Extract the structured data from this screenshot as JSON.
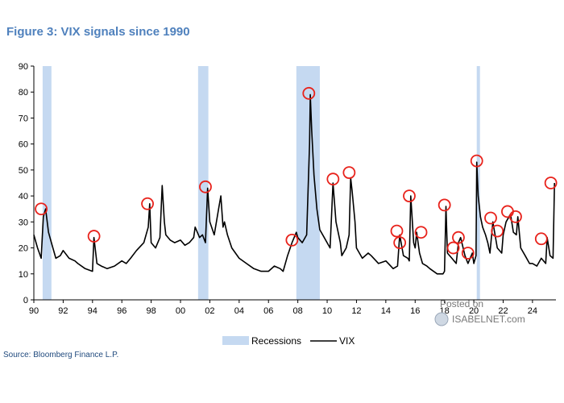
{
  "figure_title": "Figure 3: VIX signals since 1990",
  "source": "Source: Bloomberg Finance L.P.",
  "watermark": {
    "line1": "Posted on",
    "line2": "ISABELNET.com"
  },
  "colors": {
    "title": "#4f81bd",
    "recession": "#c5d9f1",
    "vix_line": "#000000",
    "signal_circle": "#e8221b"
  },
  "chart_data": {
    "type": "line",
    "title": "Figure 3: VIX signals since 1990",
    "xlabel": "",
    "ylabel": "",
    "xlim": [
      1990,
      2025.6
    ],
    "ylim": [
      0,
      90
    ],
    "y_ticks": [
      0,
      10,
      20,
      30,
      40,
      50,
      60,
      70,
      80,
      90
    ],
    "x_ticks": [
      {
        "value": 1990,
        "label": "90"
      },
      {
        "value": 1992,
        "label": "92"
      },
      {
        "value": 1994,
        "label": "94"
      },
      {
        "value": 1996,
        "label": "96"
      },
      {
        "value": 1998,
        "label": "98"
      },
      {
        "value": 2000,
        "label": "00"
      },
      {
        "value": 2002,
        "label": "02"
      },
      {
        "value": 2004,
        "label": "04"
      },
      {
        "value": 2006,
        "label": "06"
      },
      {
        "value": 2008,
        "label": "08"
      },
      {
        "value": 2010,
        "label": "10"
      },
      {
        "value": 2012,
        "label": "12"
      },
      {
        "value": 2014,
        "label": "14"
      },
      {
        "value": 2016,
        "label": "16"
      },
      {
        "value": 2018,
        "label": "18"
      },
      {
        "value": 2020,
        "label": "20"
      },
      {
        "value": 2022,
        "label": "22"
      },
      {
        "value": 2024,
        "label": "24"
      }
    ],
    "grid": false,
    "legend_position": "bottom-center",
    "legend": [
      {
        "label": "Recessions",
        "kind": "area"
      },
      {
        "label": "VIX",
        "kind": "line"
      }
    ],
    "recessions": [
      {
        "start": 1990.6,
        "end": 1991.2
      },
      {
        "start": 2001.2,
        "end": 2001.9
      },
      {
        "start": 2007.9,
        "end": 2009.5
      },
      {
        "start": 2020.2,
        "end": 2020.4
      }
    ],
    "series": [
      {
        "name": "VIX",
        "x": [
          1990.0,
          1990.25,
          1990.5,
          1990.65,
          1990.8,
          1991.0,
          1991.2,
          1991.5,
          1991.8,
          1992.0,
          1992.4,
          1992.8,
          1993.0,
          1993.5,
          1994.0,
          1994.1,
          1994.3,
          1994.6,
          1995.0,
          1995.5,
          1996.0,
          1996.3,
          1996.6,
          1997.0,
          1997.5,
          1997.8,
          1997.9,
          1998.0,
          1998.3,
          1998.6,
          1998.75,
          1998.9,
          1999.0,
          1999.3,
          1999.6,
          2000.0,
          2000.3,
          2000.6,
          2000.9,
          2001.0,
          2001.3,
          2001.5,
          2001.7,
          2001.85,
          2002.0,
          2002.3,
          2002.6,
          2002.75,
          2002.9,
          2003.0,
          2003.2,
          2003.5,
          2004.0,
          2004.5,
          2005.0,
          2005.5,
          2006.0,
          2006.4,
          2006.8,
          2007.0,
          2007.3,
          2007.6,
          2007.9,
          2008.0,
          2008.3,
          2008.6,
          2008.8,
          2008.85,
          2008.95,
          2009.1,
          2009.3,
          2009.5,
          2009.8,
          2010.0,
          2010.2,
          2010.4,
          2010.6,
          2010.9,
          2011.0,
          2011.3,
          2011.5,
          2011.6,
          2011.7,
          2011.9,
          2012.0,
          2012.4,
          2012.8,
          2013.0,
          2013.5,
          2014.0,
          2014.5,
          2014.8,
          2014.95,
          2015.2,
          2015.5,
          2015.6,
          2015.7,
          2015.9,
          2016.0,
          2016.1,
          2016.3,
          2016.5,
          2016.8,
          2017.0,
          2017.5,
          2017.9,
          2018.0,
          2018.1,
          2018.2,
          2018.5,
          2018.8,
          2018.95,
          2019.1,
          2019.4,
          2019.6,
          2019.9,
          2020.0,
          2020.15,
          2020.2,
          2020.3,
          2020.45,
          2020.6,
          2020.8,
          2020.95,
          2021.1,
          2021.3,
          2021.6,
          2021.9,
          2022.0,
          2022.2,
          2022.5,
          2022.7,
          2022.9,
          2023.0,
          2023.2,
          2023.5,
          2023.8,
          2024.0,
          2024.3,
          2024.6,
          2024.9,
          2025.0,
          2025.2,
          2025.4,
          2025.5
        ],
        "values": [
          25,
          20,
          16,
          32,
          35,
          26,
          22,
          16,
          17,
          19,
          16,
          15,
          14,
          12,
          11,
          24,
          14,
          13,
          12,
          13,
          15,
          14,
          16,
          19,
          22,
          28,
          37,
          22,
          20,
          24,
          44,
          30,
          25,
          23,
          22,
          23,
          21,
          22,
          24,
          28,
          24,
          25,
          22,
          43,
          30,
          25,
          35,
          40,
          28,
          30,
          25,
          20,
          16,
          14,
          12,
          11,
          11,
          13,
          12,
          11,
          17,
          22,
          26,
          24,
          22,
          25,
          60,
          79,
          65,
          48,
          35,
          27,
          24,
          22,
          20,
          45,
          30,
          22,
          17,
          20,
          25,
          47,
          42,
          30,
          20,
          16,
          18,
          17,
          14,
          15,
          12,
          13,
          25,
          17,
          16,
          15,
          40,
          22,
          20,
          26,
          18,
          14,
          13,
          12,
          10,
          10,
          11,
          36,
          18,
          16,
          14,
          22,
          24,
          17,
          14,
          18,
          14,
          17,
          53,
          40,
          32,
          28,
          25,
          22,
          18,
          30,
          20,
          18,
          25,
          30,
          33,
          26,
          25,
          32,
          20,
          17,
          14,
          14,
          13,
          16,
          14,
          24,
          17,
          16,
          45
        ]
      }
    ],
    "signals": [
      {
        "x": 1990.5,
        "y": 35
      },
      {
        "x": 1994.1,
        "y": 24.5
      },
      {
        "x": 1997.75,
        "y": 37
      },
      {
        "x": 2001.7,
        "y": 43.5
      },
      {
        "x": 2007.6,
        "y": 23
      },
      {
        "x": 2008.75,
        "y": 79.5
      },
      {
        "x": 2010.4,
        "y": 46.5
      },
      {
        "x": 2011.5,
        "y": 49
      },
      {
        "x": 2014.75,
        "y": 26.5
      },
      {
        "x": 2014.95,
        "y": 22
      },
      {
        "x": 2015.6,
        "y": 40
      },
      {
        "x": 2016.4,
        "y": 26
      },
      {
        "x": 2018.0,
        "y": 36.5
      },
      {
        "x": 2018.6,
        "y": 20
      },
      {
        "x": 2018.95,
        "y": 24
      },
      {
        "x": 2019.6,
        "y": 18
      },
      {
        "x": 2020.2,
        "y": 53.5
      },
      {
        "x": 2021.15,
        "y": 31.5
      },
      {
        "x": 2021.6,
        "y": 26.5
      },
      {
        "x": 2022.3,
        "y": 34
      },
      {
        "x": 2022.85,
        "y": 32
      },
      {
        "x": 2024.6,
        "y": 23.5
      },
      {
        "x": 2025.25,
        "y": 45
      }
    ]
  }
}
